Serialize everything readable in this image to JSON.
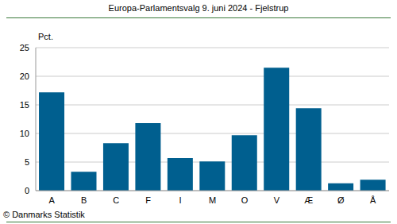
{
  "chart_data": {
    "type": "bar",
    "title": "Europa-Parlamentsvalg 9. juni 2024 - Fjelstrup",
    "ylabel": "Pct.",
    "annotations": [
      "© Danmarks Statistik"
    ],
    "categories": [
      "A",
      "B",
      "C",
      "F",
      "I",
      "M",
      "O",
      "V",
      "Æ",
      "Ø",
      "Å"
    ],
    "values": [
      17.2,
      3.3,
      8.3,
      11.8,
      5.7,
      5.1,
      9.7,
      21.5,
      14.4,
      1.3,
      1.9
    ],
    "color": "#005f8f",
    "ylim": [
      0,
      25
    ],
    "yticks": [
      0,
      5,
      10,
      15,
      20,
      25
    ],
    "grid": true
  }
}
